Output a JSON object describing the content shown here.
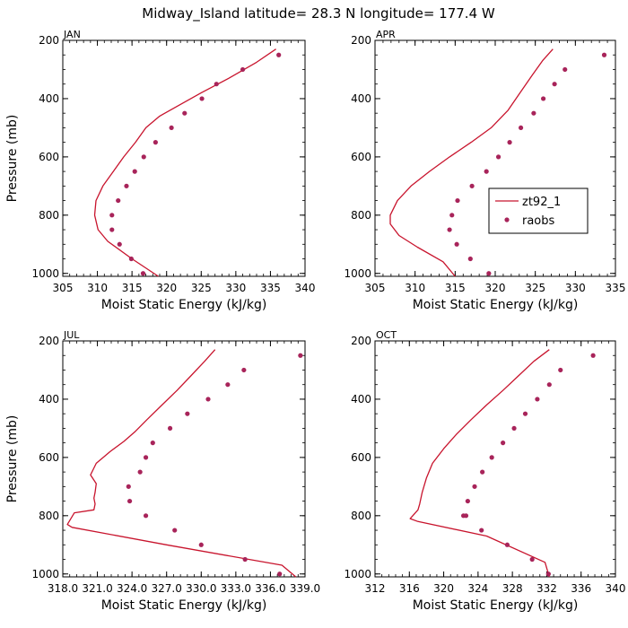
{
  "figure": {
    "title": "Midway_Island  latitude= 28.3 N longitude= 177.4 W",
    "model_color": "#c8142d",
    "obs_color": "#a8245a"
  },
  "legend": {
    "model": "zt92_1",
    "obs": "raobs"
  },
  "chart_data": [
    {
      "type": "line",
      "panel": "JAN",
      "title": "JAN",
      "xlabel": "Moist Static Energy (kJ/kg)",
      "ylabel": "Pressure (mb)",
      "xlim": [
        305,
        340
      ],
      "ylim": [
        1010,
        200
      ],
      "xticks": [
        305,
        310,
        315,
        320,
        325,
        330,
        335,
        340
      ],
      "xticklabels": [
        "305",
        "310",
        "315",
        "320",
        "325",
        "330",
        "335",
        "340"
      ],
      "yticks": [
        200,
        400,
        600,
        800,
        1000
      ],
      "yticklabels": [
        "200",
        "400",
        "600",
        "800",
        "1000"
      ],
      "model": {
        "name": "zt92_1",
        "x": [
          335.8,
          333,
          329,
          325,
          322,
          319,
          317,
          315.5,
          313.8,
          312.3,
          310.8,
          309.8,
          309.6,
          310.1,
          311.5,
          315,
          318.8
        ],
        "y": [
          230,
          275,
          330,
          380,
          420,
          460,
          500,
          550,
          600,
          650,
          700,
          750,
          800,
          850,
          890,
          950,
          1010
        ]
      },
      "obs": {
        "name": "raobs",
        "x": [
          336.2,
          331,
          327.2,
          325.1,
          322.6,
          320.7,
          318.4,
          316.7,
          315.4,
          314.2,
          313,
          312.1,
          312.1,
          313.2,
          314.9,
          316.6
        ],
        "y": [
          250,
          300,
          350,
          400,
          450,
          500,
          550,
          600,
          650,
          700,
          750,
          800,
          850,
          900,
          950,
          1000
        ]
      }
    },
    {
      "type": "line",
      "panel": "APR",
      "title": "APR",
      "xlabel": "Moist Static Energy (kJ/kg)",
      "ylabel": "Pressure (mb)",
      "xlim": [
        305,
        335
      ],
      "ylim": [
        1010,
        200
      ],
      "xticks": [
        305,
        310,
        315,
        320,
        325,
        330,
        335
      ],
      "xticklabels": [
        "305",
        "310",
        "315",
        "320",
        "325",
        "330",
        "335"
      ],
      "yticks": [
        200,
        400,
        600,
        800,
        1000
      ],
      "yticklabels": [
        "200",
        "400",
        "600",
        "800",
        "1000"
      ],
      "model": {
        "name": "zt92_1",
        "x": [
          327.2,
          325.9,
          324.6,
          323.1,
          321.6,
          319.5,
          317,
          314.3,
          311.8,
          309.5,
          307.8,
          306.9,
          306.9,
          308,
          310.3,
          313.5,
          315
        ],
        "y": [
          230,
          270,
          320,
          380,
          440,
          500,
          550,
          600,
          650,
          700,
          750,
          800,
          830,
          870,
          910,
          960,
          1010
        ]
      },
      "obs": {
        "name": "raobs",
        "x": [
          333.6,
          328.7,
          327.4,
          326,
          324.8,
          323.2,
          321.8,
          320.4,
          318.9,
          317.1,
          315.3,
          314.6,
          314.3,
          315.2,
          316.9,
          319.2
        ],
        "y": [
          250,
          300,
          350,
          400,
          450,
          500,
          550,
          600,
          650,
          700,
          750,
          800,
          850,
          900,
          950,
          1000
        ]
      }
    },
    {
      "type": "line",
      "panel": "JUL",
      "title": "JUL",
      "xlabel": "Moist Static Energy (kJ/kg)",
      "ylabel": "Pressure (mb)",
      "xlim": [
        318.0,
        339.0
      ],
      "ylim": [
        1010,
        200
      ],
      "xticks": [
        318.0,
        321.0,
        324.0,
        327.0,
        330.0,
        333.0,
        336.0,
        339.0
      ],
      "xticklabels": [
        "318.0",
        "321.0",
        "324.0",
        "327.0",
        "330.0",
        "333.0",
        "336.0",
        "339.0"
      ],
      "yticks": [
        200,
        400,
        600,
        800,
        1000
      ],
      "yticklabels": [
        "200",
        "400",
        "600",
        "800",
        "1000"
      ],
      "model": {
        "name": "zt92_1",
        "x": [
          331.2,
          330.3,
          329.1,
          327.9,
          326.6,
          325.3,
          324.3,
          323.3,
          322.1,
          320.9,
          320.4,
          320.9,
          320.8,
          320.7,
          320.8,
          320.7,
          319.0,
          318.4,
          318.8,
          327.0,
          337.0,
          338.2
        ],
        "y": [
          230,
          270,
          320,
          370,
          420,
          470,
          510,
          545,
          580,
          620,
          660,
          690,
          720,
          740,
          760,
          780,
          790,
          830,
          840,
          900,
          970,
          1010
        ]
      },
      "obs": {
        "name": "raobs",
        "x": [
          338.6,
          333.7,
          332.3,
          330.6,
          328.8,
          327.3,
          325.8,
          325.2,
          324.7,
          323.7,
          323.8,
          325.2,
          327.7,
          330,
          333.8,
          336.8
        ],
        "y": [
          250,
          300,
          350,
          400,
          450,
          500,
          550,
          600,
          650,
          700,
          750,
          800,
          850,
          900,
          950,
          1000
        ]
      }
    },
    {
      "type": "line",
      "panel": "OCT",
      "title": "OCT",
      "xlabel": "Moist Static Energy (kJ/kg)",
      "ylabel": "Pressure (mb)",
      "xlim": [
        312,
        340
      ],
      "ylim": [
        1010,
        200
      ],
      "xticks": [
        312,
        316,
        320,
        324,
        328,
        332,
        336,
        340
      ],
      "xticklabels": [
        "312",
        "316",
        "320",
        "324",
        "328",
        "332",
        "336",
        "340"
      ],
      "yticks": [
        200,
        400,
        600,
        800,
        1000
      ],
      "yticklabels": [
        "200",
        "400",
        "600",
        "800",
        "1000"
      ],
      "model": {
        "name": "zt92_1",
        "x": [
          332.3,
          330.5,
          328.7,
          326.9,
          325,
          323.2,
          321.5,
          320,
          318.7,
          318,
          317.5,
          317.2,
          317,
          316.1,
          317,
          325,
          331.8,
          332.3
        ],
        "y": [
          230,
          270,
          320,
          370,
          420,
          470,
          520,
          570,
          620,
          670,
          720,
          760,
          780,
          810,
          820,
          870,
          960,
          1010
        ]
      },
      "obs": {
        "name": "raobs",
        "x": [
          337.4,
          333.6,
          332.3,
          330.9,
          329.5,
          328.2,
          326.9,
          325.6,
          324.5,
          323.6,
          322.8,
          322.3,
          322.6,
          324.4,
          327.4,
          330.3,
          332.2
        ],
        "y": [
          250,
          300,
          350,
          400,
          450,
          500,
          550,
          600,
          650,
          700,
          750,
          800,
          800,
          850,
          900,
          950,
          1000
        ]
      }
    }
  ]
}
